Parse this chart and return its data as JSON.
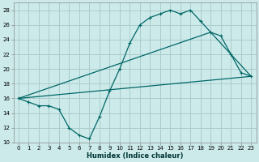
{
  "xlabel": "Humidex (Indice chaleur)",
  "background_color": "#cceaea",
  "grid_color": "#aacccc",
  "line_color": "#006666",
  "xlim": [
    -0.5,
    23.5
  ],
  "ylim": [
    10,
    29
  ],
  "xticks": [
    0,
    1,
    2,
    3,
    4,
    5,
    6,
    7,
    8,
    9,
    10,
    11,
    12,
    13,
    14,
    15,
    16,
    17,
    18,
    19,
    20,
    21,
    22,
    23
  ],
  "yticks": [
    10,
    12,
    14,
    16,
    18,
    20,
    22,
    24,
    26,
    28
  ],
  "series0_x": [
    0,
    1,
    2,
    3,
    4,
    5,
    6,
    7,
    8,
    9,
    10,
    11,
    12,
    13,
    14,
    15,
    16,
    17,
    18,
    19,
    20,
    21,
    22,
    23
  ],
  "series0_y": [
    16,
    15.5,
    15,
    15,
    14.5,
    12,
    11,
    10.5,
    13.5,
    17,
    20,
    23.5,
    26,
    27,
    27.5,
    28,
    27.5,
    28,
    26.5,
    25,
    24.5,
    22,
    19.5,
    19
  ],
  "series1_x": [
    0,
    23
  ],
  "series1_y": [
    16,
    19
  ],
  "series2_x": [
    0,
    19,
    23
  ],
  "series2_y": [
    16,
    25,
    19
  ]
}
